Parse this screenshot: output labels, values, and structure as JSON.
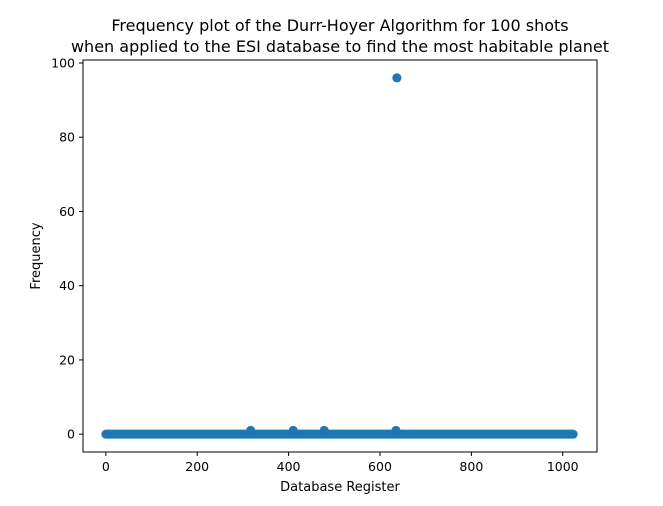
{
  "chart_data": {
    "type": "scatter",
    "title": "Frequency plot of the Durr-Hoyer Algorithm for 100 shots",
    "subtitle": "when applied to the ESI database to find the most habitable planet",
    "xlabel": "Database Register",
    "ylabel": "Frequency",
    "xlim": [
      -50,
      1075
    ],
    "ylim": [
      -4.8,
      100.8
    ],
    "xticks": [
      0,
      200,
      400,
      600,
      800,
      1000
    ],
    "yticks": [
      0,
      20,
      40,
      60,
      80,
      100
    ],
    "grid": false,
    "legend": "none",
    "marker_color": "#1f77b4",
    "baseline": {
      "x_start": 0,
      "x_end": 1023,
      "value": 0
    },
    "points": [
      {
        "x": 317,
        "y": 1
      },
      {
        "x": 410,
        "y": 1
      },
      {
        "x": 478,
        "y": 1
      },
      {
        "x": 635,
        "y": 1
      },
      {
        "x": 637,
        "y": 96
      }
    ]
  }
}
